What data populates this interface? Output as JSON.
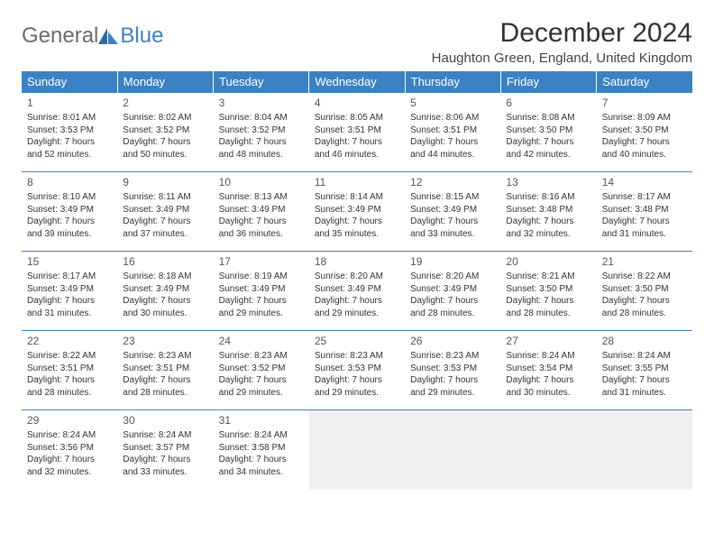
{
  "logo": {
    "part1": "General",
    "part2": "Blue"
  },
  "title": "December 2024",
  "location": "Haughton Green, England, United Kingdom",
  "colors": {
    "header_bg": "#3b82c4",
    "header_text": "#ffffff",
    "rule": "#3b82c4",
    "empty_bg": "#f0f0f0",
    "text": "#333333"
  },
  "typography": {
    "title_fontsize": 30,
    "location_fontsize": 15,
    "header_fontsize": 13,
    "cell_fontsize": 10,
    "daynum_fontsize": 12
  },
  "weekdays": [
    "Sunday",
    "Monday",
    "Tuesday",
    "Wednesday",
    "Thursday",
    "Friday",
    "Saturday"
  ],
  "weeks": [
    [
      {
        "day": "1",
        "sunrise": "Sunrise: 8:01 AM",
        "sunset": "Sunset: 3:53 PM",
        "daylight1": "Daylight: 7 hours",
        "daylight2": "and 52 minutes."
      },
      {
        "day": "2",
        "sunrise": "Sunrise: 8:02 AM",
        "sunset": "Sunset: 3:52 PM",
        "daylight1": "Daylight: 7 hours",
        "daylight2": "and 50 minutes."
      },
      {
        "day": "3",
        "sunrise": "Sunrise: 8:04 AM",
        "sunset": "Sunset: 3:52 PM",
        "daylight1": "Daylight: 7 hours",
        "daylight2": "and 48 minutes."
      },
      {
        "day": "4",
        "sunrise": "Sunrise: 8:05 AM",
        "sunset": "Sunset: 3:51 PM",
        "daylight1": "Daylight: 7 hours",
        "daylight2": "and 46 minutes."
      },
      {
        "day": "5",
        "sunrise": "Sunrise: 8:06 AM",
        "sunset": "Sunset: 3:51 PM",
        "daylight1": "Daylight: 7 hours",
        "daylight2": "and 44 minutes."
      },
      {
        "day": "6",
        "sunrise": "Sunrise: 8:08 AM",
        "sunset": "Sunset: 3:50 PM",
        "daylight1": "Daylight: 7 hours",
        "daylight2": "and 42 minutes."
      },
      {
        "day": "7",
        "sunrise": "Sunrise: 8:09 AM",
        "sunset": "Sunset: 3:50 PM",
        "daylight1": "Daylight: 7 hours",
        "daylight2": "and 40 minutes."
      }
    ],
    [
      {
        "day": "8",
        "sunrise": "Sunrise: 8:10 AM",
        "sunset": "Sunset: 3:49 PM",
        "daylight1": "Daylight: 7 hours",
        "daylight2": "and 39 minutes."
      },
      {
        "day": "9",
        "sunrise": "Sunrise: 8:11 AM",
        "sunset": "Sunset: 3:49 PM",
        "daylight1": "Daylight: 7 hours",
        "daylight2": "and 37 minutes."
      },
      {
        "day": "10",
        "sunrise": "Sunrise: 8:13 AM",
        "sunset": "Sunset: 3:49 PM",
        "daylight1": "Daylight: 7 hours",
        "daylight2": "and 36 minutes."
      },
      {
        "day": "11",
        "sunrise": "Sunrise: 8:14 AM",
        "sunset": "Sunset: 3:49 PM",
        "daylight1": "Daylight: 7 hours",
        "daylight2": "and 35 minutes."
      },
      {
        "day": "12",
        "sunrise": "Sunrise: 8:15 AM",
        "sunset": "Sunset: 3:49 PM",
        "daylight1": "Daylight: 7 hours",
        "daylight2": "and 33 minutes."
      },
      {
        "day": "13",
        "sunrise": "Sunrise: 8:16 AM",
        "sunset": "Sunset: 3:48 PM",
        "daylight1": "Daylight: 7 hours",
        "daylight2": "and 32 minutes."
      },
      {
        "day": "14",
        "sunrise": "Sunrise: 8:17 AM",
        "sunset": "Sunset: 3:48 PM",
        "daylight1": "Daylight: 7 hours",
        "daylight2": "and 31 minutes."
      }
    ],
    [
      {
        "day": "15",
        "sunrise": "Sunrise: 8:17 AM",
        "sunset": "Sunset: 3:49 PM",
        "daylight1": "Daylight: 7 hours",
        "daylight2": "and 31 minutes."
      },
      {
        "day": "16",
        "sunrise": "Sunrise: 8:18 AM",
        "sunset": "Sunset: 3:49 PM",
        "daylight1": "Daylight: 7 hours",
        "daylight2": "and 30 minutes."
      },
      {
        "day": "17",
        "sunrise": "Sunrise: 8:19 AM",
        "sunset": "Sunset: 3:49 PM",
        "daylight1": "Daylight: 7 hours",
        "daylight2": "and 29 minutes."
      },
      {
        "day": "18",
        "sunrise": "Sunrise: 8:20 AM",
        "sunset": "Sunset: 3:49 PM",
        "daylight1": "Daylight: 7 hours",
        "daylight2": "and 29 minutes."
      },
      {
        "day": "19",
        "sunrise": "Sunrise: 8:20 AM",
        "sunset": "Sunset: 3:49 PM",
        "daylight1": "Daylight: 7 hours",
        "daylight2": "and 28 minutes."
      },
      {
        "day": "20",
        "sunrise": "Sunrise: 8:21 AM",
        "sunset": "Sunset: 3:50 PM",
        "daylight1": "Daylight: 7 hours",
        "daylight2": "and 28 minutes."
      },
      {
        "day": "21",
        "sunrise": "Sunrise: 8:22 AM",
        "sunset": "Sunset: 3:50 PM",
        "daylight1": "Daylight: 7 hours",
        "daylight2": "and 28 minutes."
      }
    ],
    [
      {
        "day": "22",
        "sunrise": "Sunrise: 8:22 AM",
        "sunset": "Sunset: 3:51 PM",
        "daylight1": "Daylight: 7 hours",
        "daylight2": "and 28 minutes."
      },
      {
        "day": "23",
        "sunrise": "Sunrise: 8:23 AM",
        "sunset": "Sunset: 3:51 PM",
        "daylight1": "Daylight: 7 hours",
        "daylight2": "and 28 minutes."
      },
      {
        "day": "24",
        "sunrise": "Sunrise: 8:23 AM",
        "sunset": "Sunset: 3:52 PM",
        "daylight1": "Daylight: 7 hours",
        "daylight2": "and 29 minutes."
      },
      {
        "day": "25",
        "sunrise": "Sunrise: 8:23 AM",
        "sunset": "Sunset: 3:53 PM",
        "daylight1": "Daylight: 7 hours",
        "daylight2": "and 29 minutes."
      },
      {
        "day": "26",
        "sunrise": "Sunrise: 8:23 AM",
        "sunset": "Sunset: 3:53 PM",
        "daylight1": "Daylight: 7 hours",
        "daylight2": "and 29 minutes."
      },
      {
        "day": "27",
        "sunrise": "Sunrise: 8:24 AM",
        "sunset": "Sunset: 3:54 PM",
        "daylight1": "Daylight: 7 hours",
        "daylight2": "and 30 minutes."
      },
      {
        "day": "28",
        "sunrise": "Sunrise: 8:24 AM",
        "sunset": "Sunset: 3:55 PM",
        "daylight1": "Daylight: 7 hours",
        "daylight2": "and 31 minutes."
      }
    ],
    [
      {
        "day": "29",
        "sunrise": "Sunrise: 8:24 AM",
        "sunset": "Sunset: 3:56 PM",
        "daylight1": "Daylight: 7 hours",
        "daylight2": "and 32 minutes."
      },
      {
        "day": "30",
        "sunrise": "Sunrise: 8:24 AM",
        "sunset": "Sunset: 3:57 PM",
        "daylight1": "Daylight: 7 hours",
        "daylight2": "and 33 minutes."
      },
      {
        "day": "31",
        "sunrise": "Sunrise: 8:24 AM",
        "sunset": "Sunset: 3:58 PM",
        "daylight1": "Daylight: 7 hours",
        "daylight2": "and 34 minutes."
      },
      null,
      null,
      null,
      null
    ]
  ]
}
